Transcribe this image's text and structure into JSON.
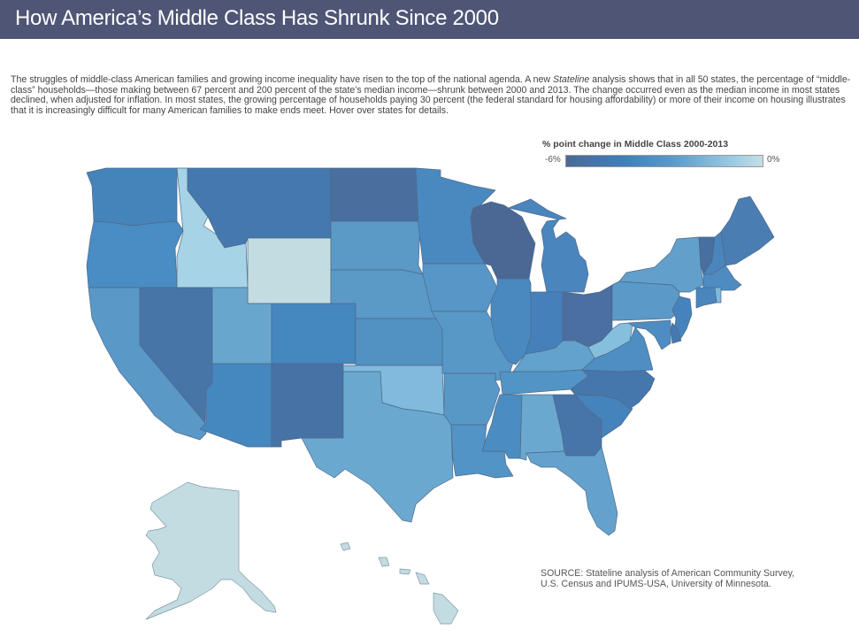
{
  "header": {
    "title": "How America’s Middle Class Has Shrunk Since 2000"
  },
  "intro": {
    "part1": "The struggles of middle-class American families and growing income inequality have risen to the top of the national agenda. A new ",
    "italic": "Stateline",
    "part2": " analysis shows that in all 50 states, the percentage of “middle-class” households—those making between 67 percent and 200 percent of the state’s median income—shrunk between 2000 and 2013. The change occurred even as the median income in most states declined, when adjusted for inflation. In most states, the growing percentage of households paying 30 percent (the federal standard for housing affordability) or more of their income on housing illustrates that it is increasingly difficult for many American families to make ends meet. Hover over states for details."
  },
  "legend": {
    "title": "% point change in Middle Class 2000-2013",
    "min_label": "-6%",
    "max_label": "0%",
    "colors": {
      "min": "#4a6a95",
      "mid": "#3f80bb",
      "max": "#c6dde4"
    }
  },
  "source": "SOURCE: Stateline analysis of American Community Survey, U.S. Census and IPUMS-USA, University of Minnesota.",
  "colors": {
    "header_bg": "#4f5575",
    "border": "#4e6a88"
  },
  "chart_data": {
    "type": "choropleth",
    "title": "% point change in Middle Class 2000-2013",
    "scale": {
      "min": -6,
      "max": 0,
      "unit": "% points"
    },
    "states": [
      {
        "id": "WA",
        "name": "Washington",
        "color": "#4583bb"
      },
      {
        "id": "OR",
        "name": "Oregon",
        "color": "#4a8cc4"
      },
      {
        "id": "CA",
        "name": "California",
        "color": "#5a98c8"
      },
      {
        "id": "ID",
        "name": "Idaho",
        "color": "#a6d3e6"
      },
      {
        "id": "NV",
        "name": "Nevada",
        "color": "#4775a8"
      },
      {
        "id": "MT",
        "name": "Montana",
        "color": "#4578ae"
      },
      {
        "id": "WY",
        "name": "Wyoming",
        "color": "#c3dce2"
      },
      {
        "id": "UT",
        "name": "Utah",
        "color": "#68a6cd"
      },
      {
        "id": "AZ",
        "name": "Arizona",
        "color": "#4587bf"
      },
      {
        "id": "CO",
        "name": "Colorado",
        "color": "#4587bf"
      },
      {
        "id": "NM",
        "name": "New Mexico",
        "color": "#4772a6"
      },
      {
        "id": "ND",
        "name": "North Dakota",
        "color": "#486f9e"
      },
      {
        "id": "SD",
        "name": "South Dakota",
        "color": "#5b99c7"
      },
      {
        "id": "NE",
        "name": "Nebraska",
        "color": "#5b99c7"
      },
      {
        "id": "KS",
        "name": "Kansas",
        "color": "#5292c3"
      },
      {
        "id": "OK",
        "name": "Oklahoma",
        "color": "#80badc"
      },
      {
        "id": "TX",
        "name": "Texas",
        "color": "#6aa8d0"
      },
      {
        "id": "MN",
        "name": "Minnesota",
        "color": "#4a89c0"
      },
      {
        "id": "IA",
        "name": "Iowa",
        "color": "#5796c6"
      },
      {
        "id": "MO",
        "name": "Missouri",
        "color": "#5898c7"
      },
      {
        "id": "AR",
        "name": "Arkansas",
        "color": "#5898c7"
      },
      {
        "id": "LA",
        "name": "Louisiana",
        "color": "#5294c5"
      },
      {
        "id": "WI",
        "name": "Wisconsin",
        "color": "#4a6893"
      },
      {
        "id": "IL",
        "name": "Illinois",
        "color": "#4a89c0"
      },
      {
        "id": "MI",
        "name": "Michigan",
        "color": "#4a85bd"
      },
      {
        "id": "IN",
        "name": "Indiana",
        "color": "#4580bb"
      },
      {
        "id": "OH",
        "name": "Ohio",
        "color": "#4a6fa0"
      },
      {
        "id": "KY",
        "name": "Kentucky",
        "color": "#62a2cc"
      },
      {
        "id": "TN",
        "name": "Tennessee",
        "color": "#5294c5"
      },
      {
        "id": "MS",
        "name": "Mississippi",
        "color": "#4b8dc3"
      },
      {
        "id": "AL",
        "name": "Alabama",
        "color": "#6aa8d0"
      },
      {
        "id": "GA",
        "name": "Georgia",
        "color": "#4775aa"
      },
      {
        "id": "FL",
        "name": "Florida",
        "color": "#64a2cd"
      },
      {
        "id": "SC",
        "name": "South Carolina",
        "color": "#4583bd"
      },
      {
        "id": "NC",
        "name": "North Carolina",
        "color": "#4577ac"
      },
      {
        "id": "VA",
        "name": "Virginia",
        "color": "#4f8ec3"
      },
      {
        "id": "WV",
        "name": "West Virginia",
        "color": "#86bfde"
      },
      {
        "id": "PA",
        "name": "Pennsylvania",
        "color": "#5a99c8"
      },
      {
        "id": "NY",
        "name": "New York",
        "color": "#62a0cb"
      },
      {
        "id": "VT",
        "name": "Vermont",
        "color": "#476f9f"
      },
      {
        "id": "NH",
        "name": "New Hampshire",
        "color": "#4a85bd"
      },
      {
        "id": "ME",
        "name": "Maine",
        "color": "#4a7db2"
      },
      {
        "id": "MA",
        "name": "Massachusetts",
        "color": "#4e8bc1"
      },
      {
        "id": "CT",
        "name": "Connecticut",
        "color": "#4a85bd"
      },
      {
        "id": "RI",
        "name": "Rhode Island",
        "color": "#7db8da"
      },
      {
        "id": "NJ",
        "name": "New Jersey",
        "color": "#4683bd"
      },
      {
        "id": "DE",
        "name": "Delaware",
        "color": "#4778ae"
      },
      {
        "id": "MD",
        "name": "Maryland",
        "color": "#4e8dc3"
      },
      {
        "id": "AK",
        "name": "Alaska",
        "color": "#c3dce2"
      },
      {
        "id": "HI",
        "name": "Hawaii",
        "color": "#c3dce2"
      }
    ]
  }
}
